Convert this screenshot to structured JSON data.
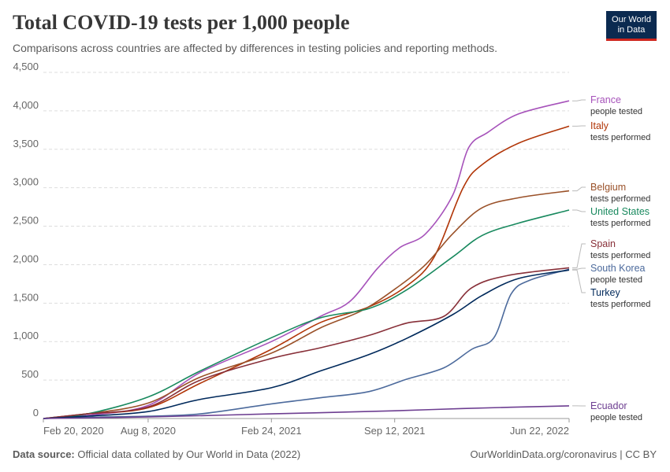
{
  "header": {
    "title": "Total COVID-19 tests per 1,000 people",
    "subtitle": "Comparisons across countries are affected by differences in testing policies and reporting methods."
  },
  "logo": {
    "line1": "Our World",
    "line2": "in Data",
    "bg_color": "#0b2a50",
    "accent_color": "#ce261e"
  },
  "footer": {
    "source_label": "Data source:",
    "source_text": "Official data collated by Our World in Data (2022)",
    "right_text": "OurWorldinData.org/coronavirus | CC BY"
  },
  "chart_data": {
    "type": "line",
    "title": "Total COVID-19 tests per 1,000 people",
    "xlabel": "",
    "ylabel": "",
    "ylim": [
      0,
      4500
    ],
    "y_ticks": [
      0,
      500,
      1000,
      1500,
      2000,
      2500,
      3000,
      3500,
      4000,
      4500
    ],
    "y_tick_labels": [
      "0",
      "500",
      "1,000",
      "1,500",
      "2,000",
      "2,500",
      "3,000",
      "3,500",
      "4,000",
      "4,500"
    ],
    "x_range": [
      "2020-02-20",
      "2022-06-22"
    ],
    "x_ticks": [
      "2020-02-20",
      "2020-08-08",
      "2021-02-24",
      "2021-09-12",
      "2022-06-22"
    ],
    "x_tick_labels": [
      "Feb 20, 2020",
      "Aug 8, 2020",
      "Feb 24, 2021",
      "Sep 12, 2021",
      "Jun 22, 2022"
    ],
    "grid": "horizontal dashed",
    "legend": "right (line-end labels)",
    "series": [
      {
        "name": "France",
        "note": "people tested",
        "color": "#a652ba",
        "x": [
          "2020-02-20",
          "2020-05-01",
          "2020-08-08",
          "2020-11-01",
          "2021-02-24",
          "2021-05-15",
          "2021-07-01",
          "2021-08-15",
          "2021-09-20",
          "2021-11-01",
          "2021-12-15",
          "2022-01-10",
          "2022-02-10",
          "2022-04-01",
          "2022-06-22"
        ],
        "y": [
          0,
          40,
          170,
          600,
          1000,
          1330,
          1520,
          1950,
          2220,
          2400,
          2900,
          3520,
          3720,
          3960,
          4130
        ]
      },
      {
        "name": "Italy",
        "note": "tests performed",
        "color": "#b13507",
        "x": [
          "2020-02-20",
          "2020-05-01",
          "2020-08-08",
          "2020-11-01",
          "2021-02-24",
          "2021-05-15",
          "2021-08-01",
          "2021-10-01",
          "2021-11-15",
          "2022-01-01",
          "2022-02-01",
          "2022-04-01",
          "2022-06-22"
        ],
        "y": [
          0,
          60,
          140,
          460,
          900,
          1250,
          1450,
          1720,
          2100,
          3000,
          3300,
          3580,
          3800
        ]
      },
      {
        "name": "Belgium",
        "note": "tests performed",
        "color": "#9a5129",
        "x": [
          "2020-02-20",
          "2020-05-01",
          "2020-08-08",
          "2020-11-01",
          "2021-02-24",
          "2021-05-15",
          "2021-07-20",
          "2021-09-12",
          "2021-11-01",
          "2021-12-15",
          "2022-02-01",
          "2022-04-01",
          "2022-06-22"
        ],
        "y": [
          0,
          60,
          200,
          540,
          850,
          1180,
          1400,
          1680,
          2000,
          2400,
          2740,
          2870,
          2960
        ]
      },
      {
        "name": "United States",
        "note": "tests performed",
        "color": "#18895e",
        "x": [
          "2020-02-20",
          "2020-05-01",
          "2020-08-08",
          "2020-11-01",
          "2021-02-24",
          "2021-05-15",
          "2021-08-01",
          "2021-10-01",
          "2021-12-15",
          "2022-02-01",
          "2022-04-01",
          "2022-06-22"
        ],
        "y": [
          0,
          60,
          280,
          620,
          1050,
          1310,
          1430,
          1670,
          2100,
          2380,
          2540,
          2710
        ]
      },
      {
        "name": "Spain",
        "note": "tests performed",
        "color": "#883039",
        "x": [
          "2020-02-20",
          "2020-05-01",
          "2020-08-08",
          "2020-11-01",
          "2021-02-24",
          "2021-05-15",
          "2021-08-01",
          "2021-10-01",
          "2021-12-01",
          "2022-01-15",
          "2022-03-15",
          "2022-06-22"
        ],
        "y": [
          0,
          60,
          150,
          500,
          780,
          920,
          1080,
          1240,
          1330,
          1700,
          1860,
          1960
        ]
      },
      {
        "name": "South Korea",
        "note": "people tested",
        "color": "#4c6a9c",
        "x": [
          "2020-02-20",
          "2020-05-01",
          "2020-08-08",
          "2020-11-01",
          "2021-02-24",
          "2021-05-15",
          "2021-08-01",
          "2021-10-01",
          "2021-12-01",
          "2022-01-15",
          "2022-02-20",
          "2022-03-20",
          "2022-04-20",
          "2022-06-22"
        ],
        "y": [
          0,
          15,
          30,
          60,
          190,
          270,
          350,
          510,
          660,
          900,
          1050,
          1620,
          1800,
          1940
        ]
      },
      {
        "name": "Turkey",
        "note": "tests performed",
        "color": "#00295b",
        "x": [
          "2020-02-20",
          "2020-05-01",
          "2020-08-08",
          "2020-11-01",
          "2021-02-24",
          "2021-05-15",
          "2021-08-01",
          "2021-10-01",
          "2021-12-15",
          "2022-02-01",
          "2022-04-01",
          "2022-06-22"
        ],
        "y": [
          0,
          30,
          90,
          250,
          400,
          620,
          830,
          1040,
          1350,
          1600,
          1820,
          1930
        ]
      },
      {
        "name": "Ecuador",
        "note": "people tested",
        "color": "#6d3e91",
        "x": [
          "2020-02-20",
          "2020-08-08",
          "2021-02-24",
          "2021-09-12",
          "2022-01-01",
          "2022-06-22"
        ],
        "y": [
          0,
          20,
          60,
          100,
          130,
          165
        ]
      }
    ]
  }
}
